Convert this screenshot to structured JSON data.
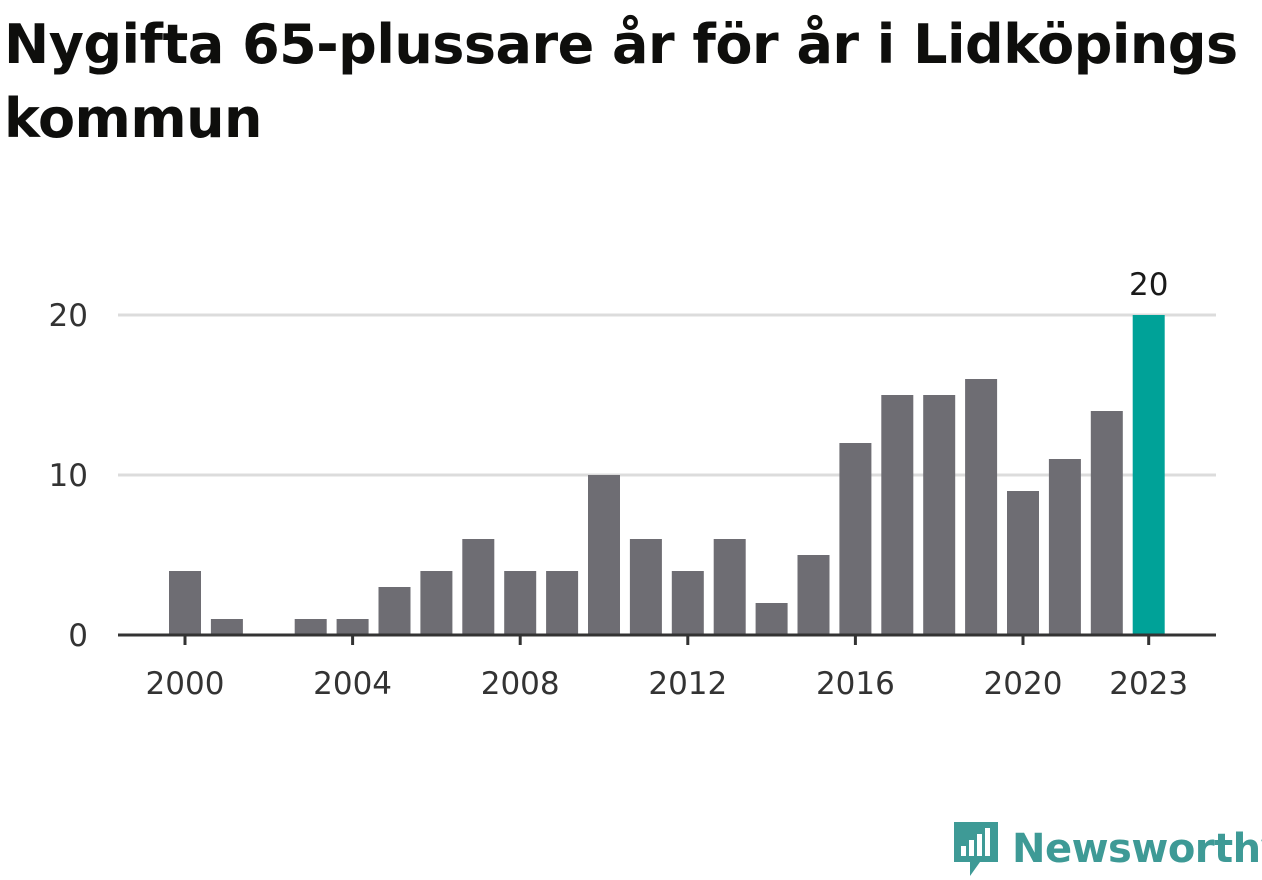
{
  "title": "Nygifta 65-plussare år för år i Lidköpings kommun",
  "brand": {
    "name": "Newsworthy",
    "icon": "newsworthy-logo-icon",
    "color": "#3e9a96"
  },
  "colors": {
    "bar": "#6e6d73",
    "highlight": "#00a298",
    "grid": "#dcdcdc",
    "axis": "#333333"
  },
  "chart_data": {
    "type": "bar",
    "title": "Nygifta 65-plussare år för år i Lidköpings kommun",
    "xlabel": "",
    "ylabel": "",
    "x": [
      2000,
      2001,
      2002,
      2003,
      2004,
      2005,
      2006,
      2007,
      2008,
      2009,
      2010,
      2011,
      2012,
      2013,
      2014,
      2015,
      2016,
      2017,
      2018,
      2019,
      2020,
      2021,
      2022,
      2023
    ],
    "values": [
      4,
      1,
      0,
      1,
      1,
      3,
      4,
      6,
      4,
      4,
      10,
      6,
      4,
      6,
      2,
      5,
      12,
      15,
      15,
      16,
      9,
      11,
      14,
      20
    ],
    "ylim": [
      0,
      20
    ],
    "yticks": [
      0,
      10,
      20
    ],
    "xticks": [
      "2000",
      "2004",
      "2008",
      "2012",
      "2016",
      "2020",
      "2023"
    ],
    "highlight": {
      "x": 2023,
      "value": 20,
      "label": "20"
    },
    "grid": true,
    "legend": "none"
  }
}
